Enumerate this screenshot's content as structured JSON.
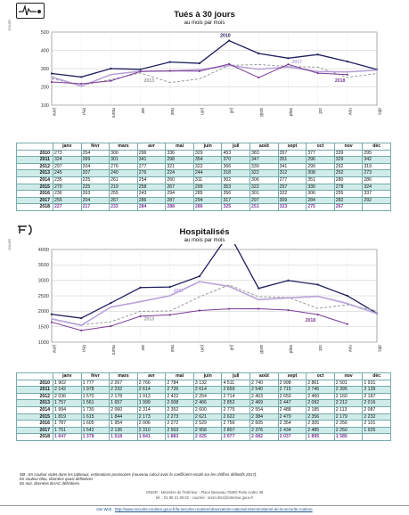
{
  "months": [
    "janv",
    "févr",
    "mars",
    "avr",
    "mai",
    "juin",
    "juil",
    "août",
    "sept",
    "oct",
    "nov",
    "déc"
  ],
  "source_side_label": "ONISR",
  "chart_data": [
    {
      "type": "line",
      "title": "Tués à 30 jours",
      "subtitle": "au mois par mois",
      "ylim": [
        100,
        500
      ],
      "yticks": [
        100,
        200,
        300,
        400,
        500
      ],
      "grid": true,
      "highlight_labels": [
        {
          "text": "2010",
          "series": "2010",
          "month": 6
        },
        {
          "text": "2017",
          "series": "2017",
          "month": 8
        },
        {
          "text": "2013",
          "series": "2013",
          "month": 3
        },
        {
          "text": "2018",
          "series": "2018",
          "month": 10
        }
      ],
      "series": [
        {
          "name": "2010",
          "values": [
            273,
            254,
            300,
            296,
            336,
            329,
            453,
            383,
            357,
            377,
            339,
            295
          ],
          "color": "#1f1f5e",
          "plotted": true
        },
        {
          "name": "2011",
          "values": [
            324,
            269,
            301,
            341,
            298,
            354,
            370,
            347,
            351,
            296,
            329,
            342
          ],
          "color": "#888888",
          "plotted": false
        },
        {
          "name": "2012",
          "values": [
            297,
            204,
            276,
            277,
            321,
            322,
            366,
            339,
            341,
            299,
            292,
            319
          ],
          "color": "#888888",
          "plotted": false
        },
        {
          "name": "2013",
          "values": [
            245,
            207,
            240,
            276,
            224,
            244,
            318,
            322,
            312,
            308,
            252,
            273
          ],
          "color": "#999999",
          "plotted": true
        },
        {
          "name": "2014",
          "values": [
            235,
            225,
            261,
            254,
            260,
            311,
            302,
            306,
            277,
            351,
            280,
            286
          ],
          "color": "#888888",
          "plotted": false
        },
        {
          "name": "2015",
          "values": [
            270,
            225,
            219,
            258,
            267,
            299,
            353,
            322,
            257,
            330,
            278,
            324
          ],
          "color": "#888888",
          "plotted": false
        },
        {
          "name": "2016",
          "values": [
            236,
            263,
            255,
            243,
            294,
            285,
            356,
            301,
            322,
            306,
            255,
            337
          ],
          "color": "#888888",
          "plotted": false
        },
        {
          "name": "2017",
          "values": [
            255,
            204,
            267,
            286,
            287,
            294,
            317,
            297,
            309,
            284,
            282,
            292
          ],
          "color": "#b9a3da",
          "plotted": true
        },
        {
          "name": "2018",
          "values": [
            227,
            217,
            233,
            284,
            288,
            286,
            325,
            251,
            323,
            275,
            267,
            null
          ],
          "color": "#7b3c95",
          "plotted": true
        }
      ]
    },
    {
      "type": "line",
      "title": "Hospitalisés",
      "subtitle": "au mois par mois",
      "ylim": [
        1000,
        4000
      ],
      "yticks": [
        1000,
        1500,
        2000,
        2500,
        3000,
        3500,
        4000
      ],
      "grid": true,
      "highlight_labels": [
        {
          "text": "2010",
          "series": "2010",
          "month": 6
        },
        {
          "text": "2017",
          "series": "2017",
          "month": 4
        },
        {
          "text": "2013",
          "series": "2013",
          "month": 3
        },
        {
          "text": "2018",
          "series": "2018",
          "month": 9
        }
      ],
      "series": [
        {
          "name": "2010",
          "values": [
            1902,
            1777,
            2267,
            2766,
            2784,
            3132,
            4511,
            2740,
            2998,
            2861,
            2501,
            1931
          ],
          "color": "#1f1f5e",
          "plotted": true
        },
        {
          "name": "2011",
          "values": [
            2142,
            1978,
            2232,
            2614,
            2726,
            2614,
            2659,
            2540,
            2715,
            2746,
            2395,
            2139
          ],
          "color": "#888888",
          "plotted": false
        },
        {
          "name": "2012",
          "values": [
            2036,
            1570,
            2178,
            1913,
            2422,
            2254,
            2714,
            2403,
            2650,
            2460,
            2160,
            2187
          ],
          "color": "#888888",
          "plotted": false
        },
        {
          "name": "2013",
          "values": [
            1757,
            1561,
            1657,
            1999,
            2008,
            2466,
            2852,
            2469,
            2447,
            2092,
            2212,
            2016
          ],
          "color": "#999999",
          "plotted": true
        },
        {
          "name": "2014",
          "values": [
            1994,
            1730,
            2060,
            2314,
            2352,
            2600,
            2775,
            2554,
            2488,
            2185,
            2113,
            2087
          ],
          "color": "#888888",
          "plotted": false
        },
        {
          "name": "2015",
          "values": [
            1819,
            1615,
            1844,
            2173,
            2273,
            2621,
            2622,
            2384,
            2479,
            2356,
            2179,
            2232
          ],
          "color": "#888888",
          "plotted": false
        },
        {
          "name": "2016",
          "values": [
            1787,
            1605,
            1954,
            2006,
            2272,
            2529,
            2756,
            2605,
            2354,
            2305,
            2256,
            2101
          ],
          "color": "#888888",
          "plotted": false
        },
        {
          "name": "2017",
          "values": [
            1751,
            1542,
            2136,
            2310,
            2503,
            2958,
            2807,
            2376,
            2434,
            2485,
            2250,
            1925
          ],
          "color": "#b9a3da",
          "plotted": true
        },
        {
          "name": "2018",
          "values": [
            1647,
            1378,
            1518,
            1841,
            1883,
            2025,
            2077,
            2082,
            2037,
            1895,
            1585,
            null
          ],
          "color": "#7b3c95",
          "plotted": true
        }
      ]
    }
  ],
  "tables": [
    {
      "header_months": [
        "janv",
        "févr",
        "mars",
        "avr",
        "mai",
        "juin",
        "juil",
        "août",
        "sept",
        "oct",
        "nov",
        "déc"
      ],
      "rows": [
        {
          "year": "2010",
          "cells": [
            "273",
            "254",
            "300",
            "296",
            "336",
            "329",
            "453",
            "383",
            "357",
            "377",
            "339",
            "295"
          ]
        },
        {
          "year": "2011",
          "cells": [
            "324",
            "269",
            "301",
            "341",
            "298",
            "354",
            "370",
            "347",
            "351",
            "296",
            "329",
            "342"
          ]
        },
        {
          "year": "2012",
          "cells": [
            "297",
            "204",
            "276",
            "277",
            "321",
            "322",
            "366",
            "339",
            "341",
            "299",
            "292",
            "319"
          ]
        },
        {
          "year": "2013",
          "cells": [
            "245",
            "207",
            "240",
            "276",
            "224",
            "244",
            "318",
            "322",
            "312",
            "308",
            "252",
            "273"
          ]
        },
        {
          "year": "2014",
          "cells": [
            "235",
            "225",
            "261",
            "254",
            "260",
            "311",
            "302",
            "306",
            "277",
            "351",
            "280",
            "286"
          ]
        },
        {
          "year": "2015",
          "cells": [
            "270",
            "225",
            "219",
            "258",
            "267",
            "299",
            "353",
            "322",
            "257",
            "330",
            "278",
            "324"
          ]
        },
        {
          "year": "2016",
          "cells": [
            "236",
            "263",
            "255",
            "243",
            "294",
            "285",
            "356",
            "301",
            "322",
            "306",
            "255",
            "337"
          ]
        },
        {
          "year": "2017",
          "cells": [
            "255",
            "204",
            "267",
            "286",
            "287",
            "294",
            "317",
            "297",
            "309",
            "284",
            "282",
            "292"
          ]
        },
        {
          "year": "2018",
          "cells": [
            "227",
            "217",
            "233",
            "284",
            "288",
            "286",
            "325",
            "251",
            "323",
            "275",
            "267",
            ""
          ]
        }
      ]
    },
    {
      "header_months": [
        "janv",
        "févr",
        "mars",
        "avr",
        "mai",
        "juin",
        "juil",
        "août",
        "sept",
        "oct",
        "nov",
        "déc"
      ],
      "rows": [
        {
          "year": "2010",
          "cells": [
            "1 902",
            "1 777",
            "2 267",
            "2 766",
            "2 784",
            "3 132",
            "4 511",
            "2 740",
            "2 998",
            "2 861",
            "2 501",
            "1 931"
          ]
        },
        {
          "year": "2011",
          "cells": [
            "2 142",
            "1 978",
            "2 232",
            "2 614",
            "2 726",
            "2 614",
            "2 659",
            "2 540",
            "2 715",
            "2 746",
            "2 395",
            "2 139"
          ]
        },
        {
          "year": "2012",
          "cells": [
            "2 036",
            "1 570",
            "2 178",
            "1 913",
            "2 422",
            "2 254",
            "2 714",
            "2 403",
            "2 650",
            "2 460",
            "2 160",
            "2 187"
          ]
        },
        {
          "year": "2013",
          "cells": [
            "1 757",
            "1 561",
            "1 657",
            "1 999",
            "2 008",
            "2 466",
            "2 852",
            "2 469",
            "2 447",
            "2 092",
            "2 212",
            "2 016"
          ]
        },
        {
          "year": "2014",
          "cells": [
            "1 994",
            "1 730",
            "2 060",
            "2 314",
            "2 352",
            "2 600",
            "2 775",
            "2 554",
            "2 488",
            "2 185",
            "2 113",
            "2 087"
          ]
        },
        {
          "year": "2015",
          "cells": [
            "1 819",
            "1 615",
            "1 844",
            "2 173",
            "2 273",
            "2 621",
            "2 622",
            "2 384",
            "2 479",
            "2 356",
            "2 179",
            "2 232"
          ]
        },
        {
          "year": "2016",
          "cells": [
            "1 787",
            "1 605",
            "1 954",
            "2 006",
            "2 272",
            "2 529",
            "2 756",
            "2 605",
            "2 354",
            "2 305",
            "2 256",
            "2 101"
          ]
        },
        {
          "year": "2017",
          "cells": [
            "1 751",
            "1 542",
            "2 136",
            "2 310",
            "2 503",
            "2 958",
            "2 807",
            "2 376",
            "2 434",
            "2 485",
            "2 250",
            "1 925"
          ]
        },
        {
          "year": "2018",
          "cells": [
            "1 647",
            "1 378",
            "1 518",
            "1 841",
            "1 883",
            "2 025",
            "2 077",
            "2 082",
            "2 037",
            "1 895",
            "1 585",
            ""
          ]
        }
      ]
    }
  ],
  "notes": {
    "line1": "NB : En couleur violet dans les tableaux, estimations provisoires (nouveau calcul avec le coefficient recalé sur les chiffres définitifs 2017).",
    "line2": "En couleur bleu, données quasi définitives",
    "line3": "En noir, données BAAC définitives."
  },
  "footer": {
    "line1": "ONISR - Ministère de l'Intérieur - Place Beauvau 75800 Paris cedex 08",
    "line2": "tél. : 01 86 21 59 02  -  courriel : onisr-dscr@interieur.gouv.fr",
    "site_label": "site Web :",
    "url": "http://www.securite-routiere.gouv.fr/la-securite-routiere/observatoire-national-interministeriel-de-la-securite-routiere"
  }
}
